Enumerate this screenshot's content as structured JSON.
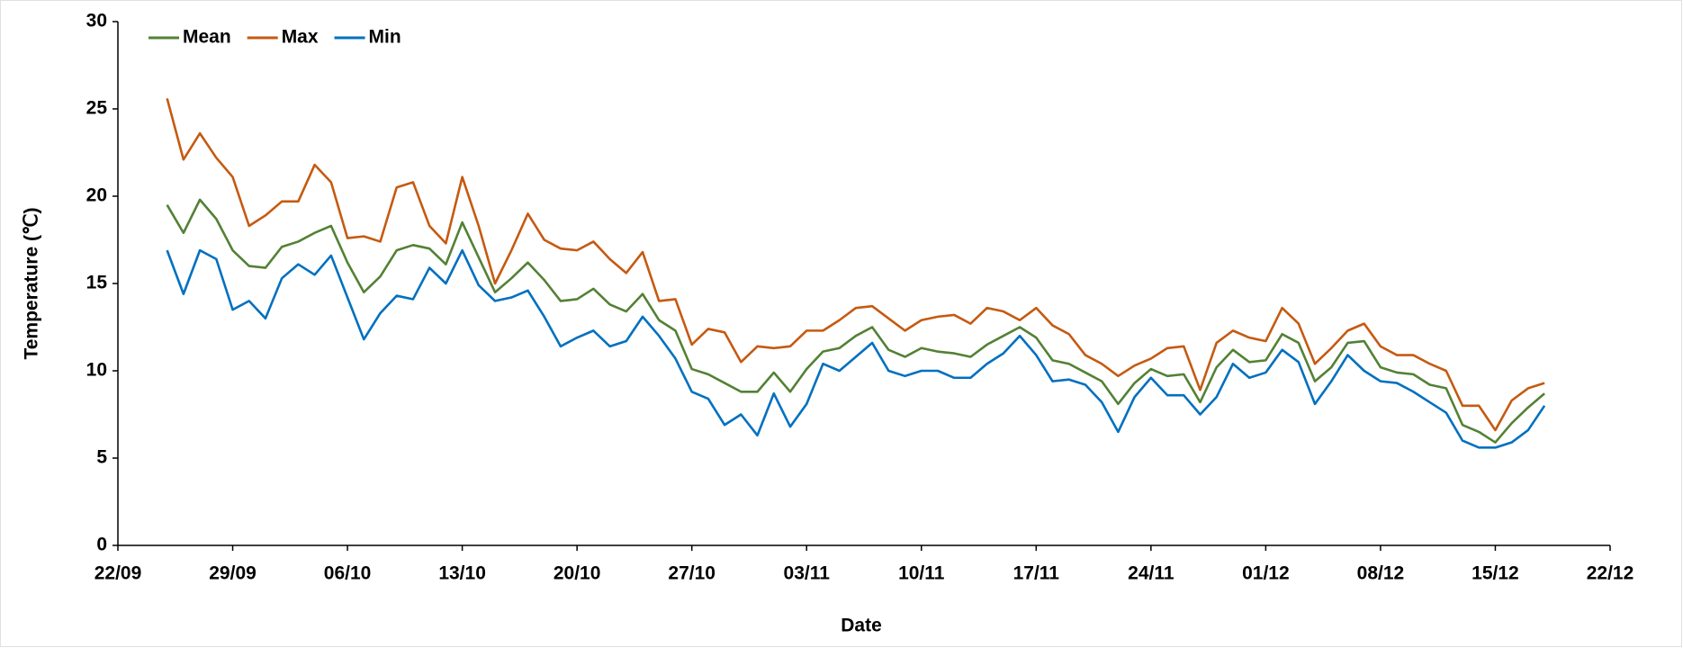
{
  "chart_data": {
    "type": "line",
    "x_label": "Date",
    "y_label": "Temperature (℃)",
    "x": [
      "25/09",
      "26/09",
      "27/09",
      "28/09",
      "29/09",
      "30/09",
      "01/10",
      "02/10",
      "03/10",
      "04/10",
      "05/10",
      "06/10",
      "07/10",
      "08/10",
      "09/10",
      "10/10",
      "11/10",
      "12/10",
      "13/10",
      "14/10",
      "15/10",
      "16/10",
      "17/10",
      "18/10",
      "19/10",
      "20/10",
      "21/10",
      "22/10",
      "23/10",
      "24/10",
      "25/10",
      "26/10",
      "27/10",
      "28/10",
      "29/10",
      "30/10",
      "31/10",
      "01/11",
      "02/11",
      "03/11",
      "04/11",
      "05/11",
      "06/11",
      "07/11",
      "08/11",
      "09/11",
      "10/11",
      "11/11",
      "12/11",
      "13/11",
      "14/11",
      "15/11",
      "16/11",
      "17/11",
      "18/11",
      "19/11",
      "20/11",
      "21/11",
      "22/11",
      "23/11",
      "24/11",
      "25/11",
      "26/11",
      "27/11",
      "28/11",
      "29/11",
      "30/11",
      "01/12",
      "02/12",
      "03/12",
      "04/12",
      "05/12",
      "06/12",
      "07/12",
      "08/12",
      "09/12",
      "10/12",
      "11/12",
      "12/12",
      "13/12",
      "14/12",
      "15/12",
      "16/12",
      "17/12",
      "18/12"
    ],
    "series": [
      {
        "name": "Mean",
        "color": "#538135",
        "values": [
          19.5,
          17.9,
          19.8,
          18.7,
          16.9,
          16.0,
          15.9,
          17.1,
          17.4,
          17.9,
          18.3,
          16.2,
          14.5,
          15.4,
          16.9,
          17.2,
          17.0,
          16.1,
          18.5,
          16.5,
          14.5,
          15.3,
          16.2,
          15.2,
          14.0,
          14.1,
          14.7,
          13.8,
          13.4,
          14.4,
          12.9,
          12.3,
          10.1,
          9.8,
          9.3,
          8.8,
          8.8,
          9.9,
          8.8,
          10.1,
          11.1,
          11.3,
          12.0,
          12.5,
          11.2,
          10.8,
          11.3,
          11.1,
          11.0,
          10.8,
          11.5,
          12.0,
          12.5,
          11.9,
          10.6,
          10.4,
          9.9,
          9.4,
          8.1,
          9.3,
          10.1,
          9.7,
          9.8,
          8.2,
          10.2,
          11.2,
          10.5,
          10.6,
          12.1,
          11.6,
          9.4,
          10.2,
          11.6,
          11.7,
          10.2,
          9.9,
          9.8,
          9.2,
          9.0,
          6.9,
          6.5,
          5.9,
          7.0,
          7.9,
          8.7
        ]
      },
      {
        "name": "Max",
        "color": "#c55a11",
        "values": [
          25.6,
          22.1,
          23.6,
          22.2,
          21.1,
          18.3,
          18.9,
          19.7,
          19.7,
          21.8,
          20.8,
          17.6,
          17.7,
          17.4,
          20.5,
          20.8,
          18.3,
          17.3,
          21.1,
          18.3,
          15.0,
          16.9,
          19.0,
          17.5,
          17.0,
          16.9,
          17.4,
          16.4,
          15.6,
          16.8,
          14.0,
          14.1,
          11.5,
          12.4,
          12.2,
          10.5,
          11.4,
          11.3,
          11.4,
          12.3,
          12.3,
          12.9,
          13.6,
          13.7,
          13.0,
          12.3,
          12.9,
          13.1,
          13.2,
          12.7,
          13.6,
          13.4,
          12.9,
          13.6,
          12.6,
          12.1,
          10.9,
          10.4,
          9.7,
          10.3,
          10.7,
          11.3,
          11.4,
          8.9,
          11.6,
          12.3,
          11.9,
          11.7,
          13.6,
          12.7,
          10.4,
          11.3,
          12.3,
          12.7,
          11.4,
          10.9,
          10.9,
          10.4,
          10.0,
          8.0,
          8.0,
          6.6,
          8.3,
          9.0,
          9.3
        ]
      },
      {
        "name": "Min",
        "color": "#0070c0",
        "values": [
          16.9,
          14.4,
          16.9,
          16.4,
          13.5,
          14.0,
          13.0,
          15.3,
          16.1,
          15.5,
          16.6,
          14.2,
          11.8,
          13.3,
          14.3,
          14.1,
          15.9,
          15.0,
          16.9,
          14.9,
          14.0,
          14.2,
          14.6,
          13.1,
          11.4,
          11.9,
          12.3,
          11.4,
          11.7,
          13.1,
          12.0,
          10.7,
          8.8,
          8.4,
          6.9,
          7.5,
          6.3,
          8.7,
          6.8,
          8.1,
          10.4,
          10.0,
          10.8,
          11.6,
          10.0,
          9.7,
          10.0,
          10.0,
          9.6,
          9.6,
          10.4,
          11.0,
          12.0,
          10.9,
          9.4,
          9.5,
          9.2,
          8.2,
          6.5,
          8.5,
          9.6,
          8.6,
          8.6,
          7.5,
          8.5,
          10.4,
          9.6,
          9.9,
          11.2,
          10.5,
          8.1,
          9.4,
          10.9,
          10.0,
          9.4,
          9.3,
          8.8,
          8.2,
          7.6,
          6.0,
          5.6,
          5.6,
          5.9,
          6.6,
          8.0
        ]
      }
    ],
    "xlim": [
      "22/09",
      "22/12"
    ],
    "xticks": [
      "22/09",
      "29/09",
      "06/10",
      "13/10",
      "20/10",
      "27/10",
      "03/11",
      "10/11",
      "17/11",
      "24/11",
      "01/12",
      "08/12",
      "15/12",
      "22/12"
    ],
    "ylim": [
      0,
      30
    ],
    "yticks": [
      0,
      5,
      10,
      15,
      20,
      25,
      30
    ],
    "grid": false,
    "legend": "top-left"
  }
}
